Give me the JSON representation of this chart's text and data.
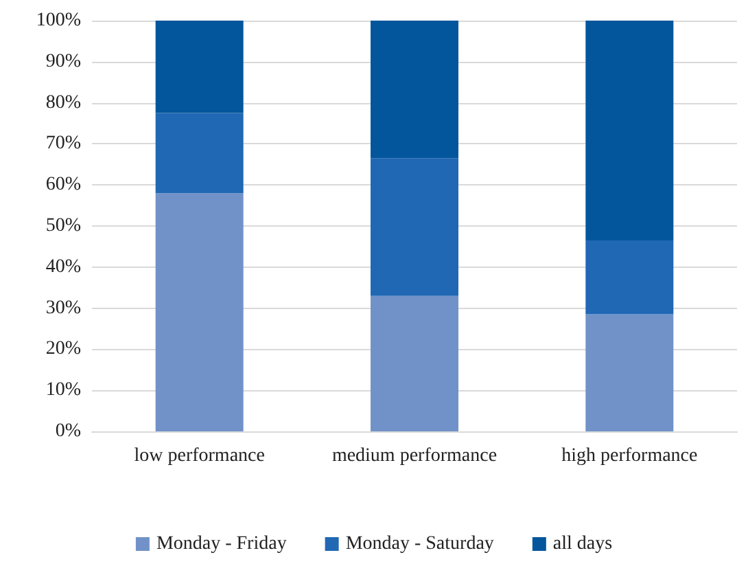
{
  "chart_data": {
    "type": "bar",
    "stacked": true,
    "categories": [
      "low performance",
      "medium performance",
      "high performance"
    ],
    "series": [
      {
        "name": "Monday - Friday",
        "color": "#7092c9",
        "values": [
          58,
          33,
          28.5
        ]
      },
      {
        "name": "Monday - Saturday",
        "color": "#2068b4",
        "values": [
          19.5,
          33.5,
          18
        ]
      },
      {
        "name": "all days",
        "color": "#03559c",
        "values": [
          22.5,
          33.5,
          53.5
        ]
      }
    ],
    "ylim": [
      0,
      100
    ],
    "yticks": [
      {
        "value": 0,
        "label": "0%"
      },
      {
        "value": 10,
        "label": "10%"
      },
      {
        "value": 20,
        "label": "20%"
      },
      {
        "value": 30,
        "label": "30%"
      },
      {
        "value": 40,
        "label": "40%"
      },
      {
        "value": 50,
        "label": "50%"
      },
      {
        "value": 60,
        "label": "60%"
      },
      {
        "value": 70,
        "label": "70%"
      },
      {
        "value": 80,
        "label": "80%"
      },
      {
        "value": 90,
        "label": "90%"
      },
      {
        "value": 100,
        "label": "100%"
      }
    ],
    "grid": true,
    "legend": "bottom"
  }
}
